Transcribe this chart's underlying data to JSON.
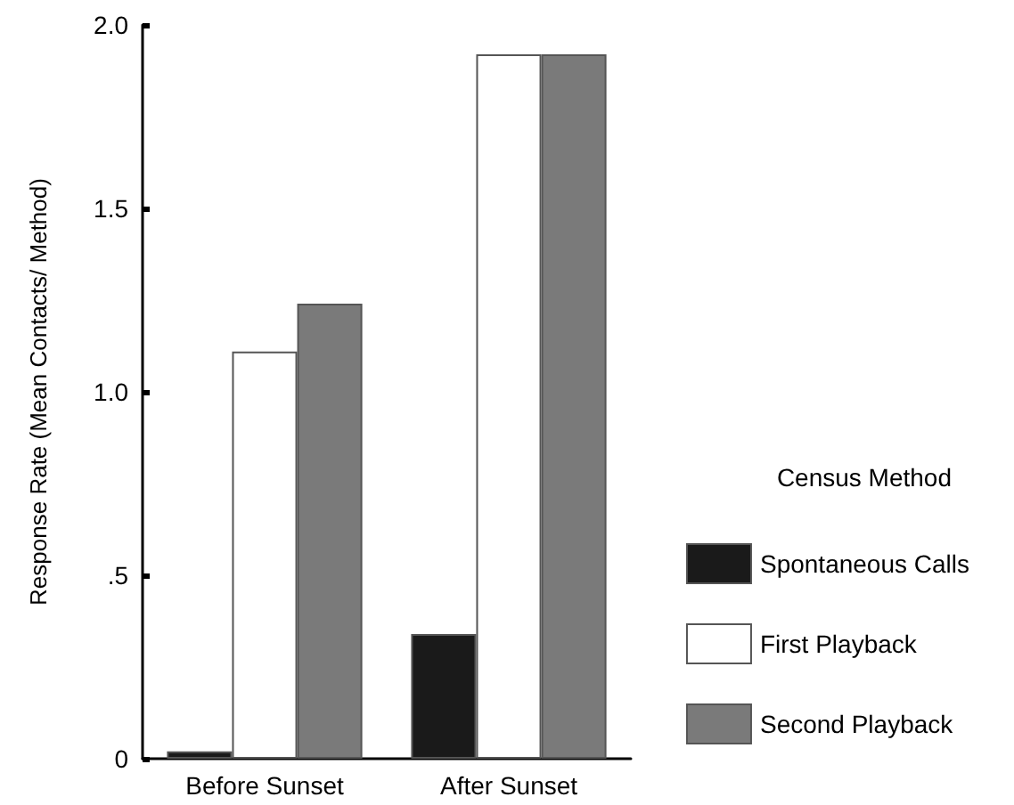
{
  "chart_data": {
    "type": "bar",
    "ylabel": "Response Rate (Mean Contacts/ Method)",
    "legend_title": "Census Method",
    "categories": [
      "Before Sunset",
      "After Sunset"
    ],
    "series": [
      {
        "name": "Spontaneous Calls",
        "color": "#1a1a1a",
        "values": [
          0.02,
          0.34
        ]
      },
      {
        "name": "First Playback",
        "color": "#ffffff",
        "values": [
          1.11,
          1.92
        ]
      },
      {
        "name": "Second Playback",
        "color": "#7a7a7a",
        "values": [
          1.24,
          1.92
        ]
      }
    ],
    "ylim": [
      0,
      2
    ],
    "yticks": [
      0,
      {
        "value": 0.5,
        "label": ".5"
      },
      {
        "value": 1,
        "label": "1.0"
      },
      {
        "value": 1.5,
        "label": "1.5"
      },
      {
        "value": 2,
        "label": "2.0"
      }
    ],
    "grid": false,
    "legend": "right"
  }
}
